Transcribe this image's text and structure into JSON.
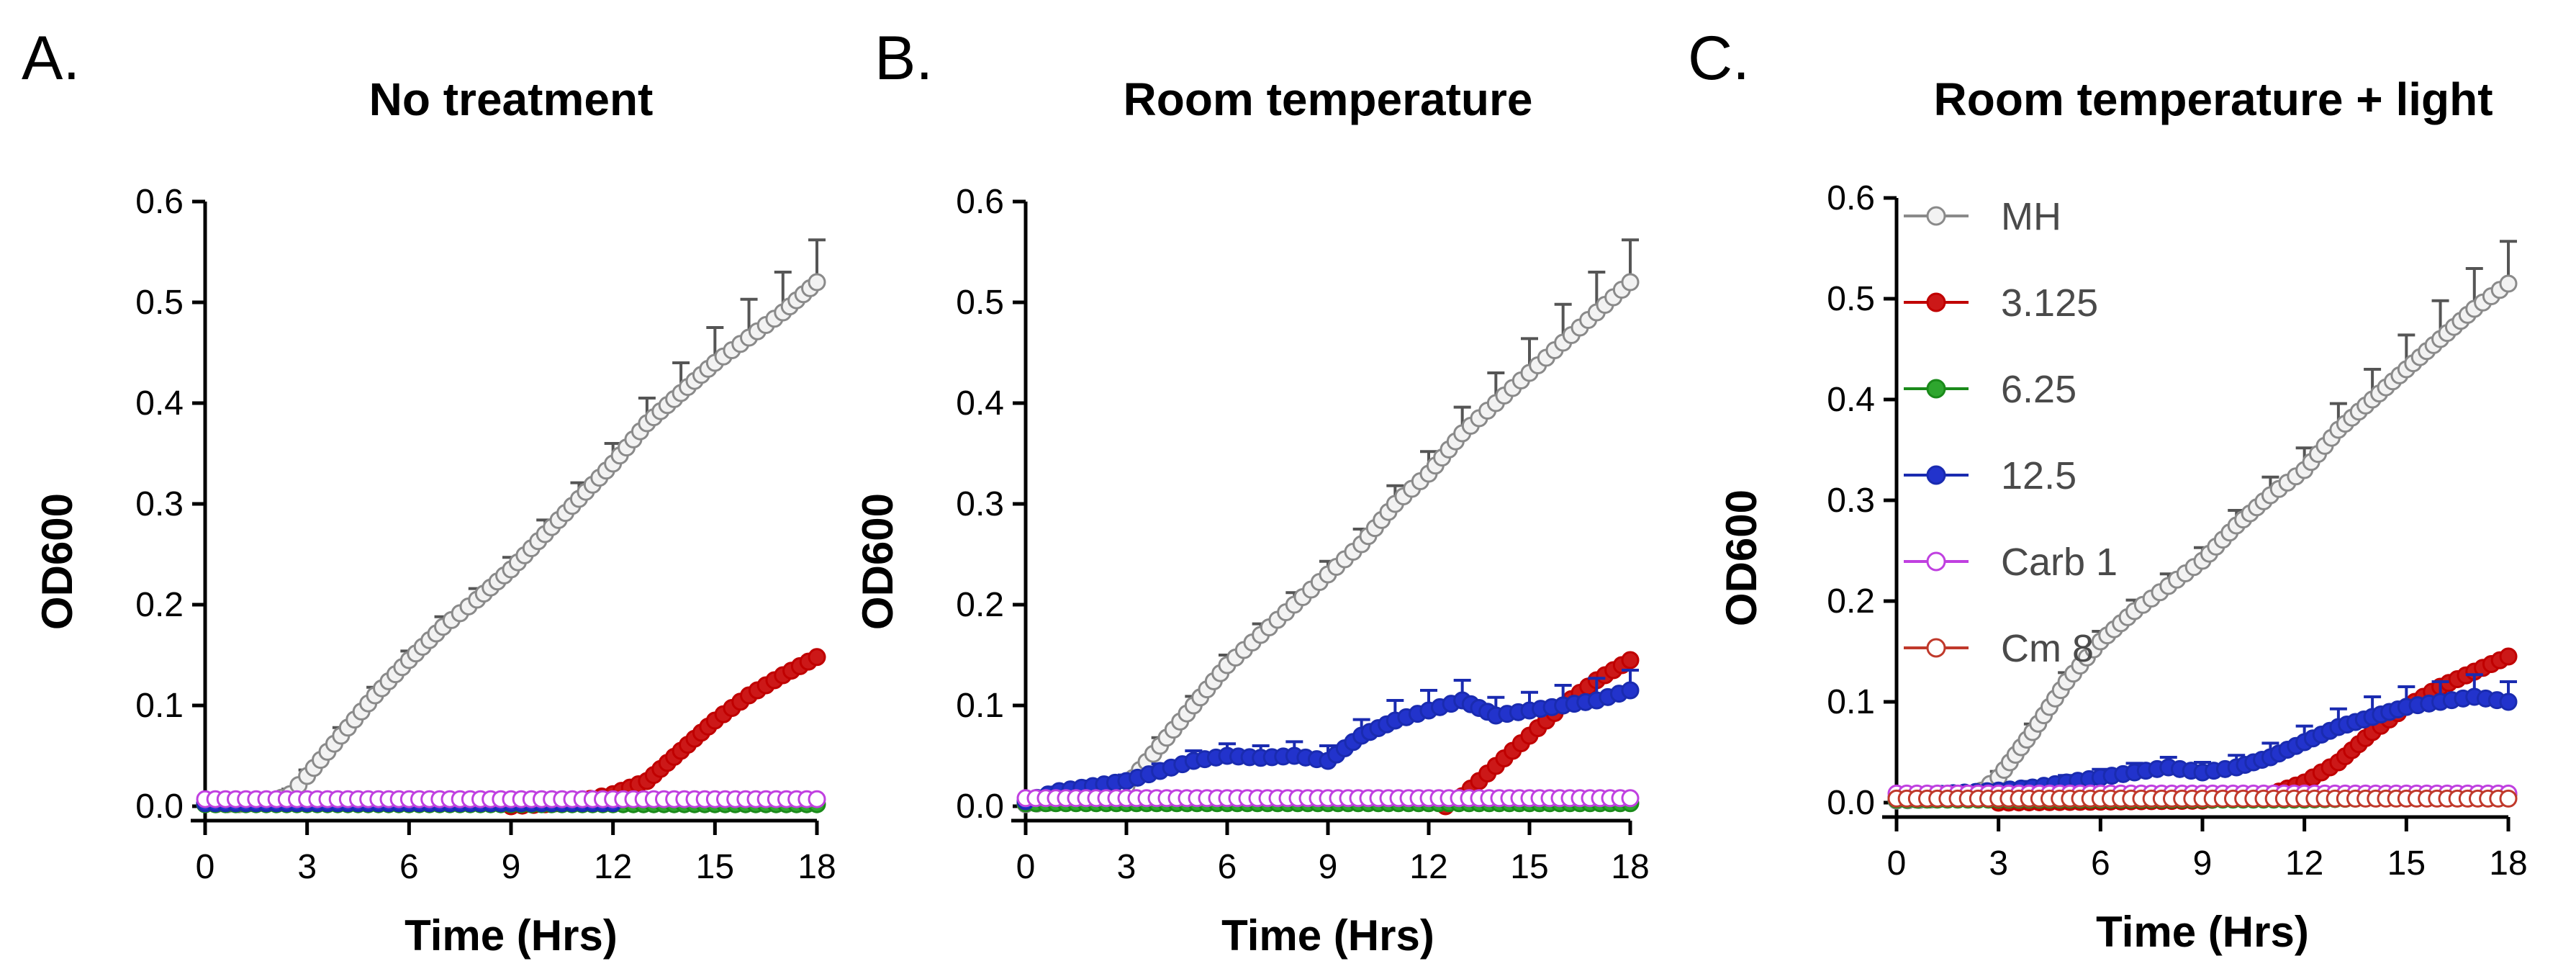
{
  "chart_data": [
    {
      "panel_letter": "A.",
      "type": "line",
      "title": "No treatment",
      "xlabel": "Time (Hrs)",
      "ylabel": "OD600",
      "xlim": [
        0,
        18
      ],
      "ylim": [
        0,
        0.6
      ],
      "xticks": [
        "0",
        "3",
        "6",
        "9",
        "12",
        "15",
        "18"
      ],
      "yticks": [
        "0.0",
        "0.1",
        "0.2",
        "0.3",
        "0.4",
        "0.5",
        "0.6"
      ],
      "legend": false,
      "series": [
        {
          "name": "MH",
          "color": "#8a8a8a",
          "fill": "#f2f2f2",
          "error": true,
          "x": [
            0,
            1,
            2,
            2.5,
            3,
            4,
            5,
            6,
            7,
            8,
            9,
            10,
            11,
            12,
            13,
            14,
            15,
            16,
            17,
            18
          ],
          "y": [
            0.002,
            0.002,
            0.005,
            0.012,
            0.03,
            0.07,
            0.11,
            0.145,
            0.178,
            0.205,
            0.235,
            0.27,
            0.305,
            0.34,
            0.38,
            0.41,
            0.44,
            0.465,
            0.49,
            0.52
          ],
          "err": [
            0.003,
            0.003,
            0.004,
            0.005,
            0.006,
            0.008,
            0.008,
            0.009,
            0.01,
            0.011,
            0.012,
            0.014,
            0.016,
            0.02,
            0.025,
            0.03,
            0.035,
            0.038,
            0.04,
            0.042
          ]
        },
        {
          "name": "3.125",
          "color": "#c00000",
          "fill": "#cc1818",
          "error": false,
          "x": [
            9,
            10,
            11,
            12,
            13,
            14,
            15,
            16,
            17,
            18
          ],
          "y": [
            0.0,
            0.002,
            0.005,
            0.012,
            0.025,
            0.055,
            0.085,
            0.11,
            0.13,
            0.148
          ]
        },
        {
          "name": "6.25",
          "color": "#1a8a1a",
          "fill": "#2ea62e",
          "error": false,
          "x": [
            0,
            3,
            6,
            9,
            12,
            15,
            18
          ],
          "y": [
            0.002,
            0.002,
            0.002,
            0.002,
            0.002,
            0.002,
            0.002
          ]
        },
        {
          "name": "12.5",
          "color": "#1a2bb0",
          "fill": "#2233cc",
          "error": false,
          "x": [
            0,
            3,
            6,
            9,
            12
          ],
          "y": [
            0.003,
            0.003,
            0.003,
            0.003,
            0.003
          ]
        },
        {
          "name": "Carb 1",
          "color": "#c040e0",
          "fill": "#ffffff",
          "error": false,
          "x": [
            0,
            3,
            6,
            9,
            12,
            15,
            18
          ],
          "y": [
            0.007,
            0.007,
            0.007,
            0.007,
            0.007,
            0.007,
            0.007
          ]
        }
      ]
    },
    {
      "panel_letter": "B.",
      "type": "line",
      "title": "Room temperature",
      "xlabel": "Time (Hrs)",
      "ylabel": "OD600",
      "xlim": [
        0,
        18
      ],
      "ylim": [
        0,
        0.6
      ],
      "xticks": [
        "0",
        "3",
        "6",
        "9",
        "12",
        "15",
        "18"
      ],
      "yticks": [
        "0.0",
        "0.1",
        "0.2",
        "0.3",
        "0.4",
        "0.5",
        "0.6"
      ],
      "legend": false,
      "series": [
        {
          "name": "MH",
          "color": "#8a8a8a",
          "fill": "#f2f2f2",
          "error": true,
          "x": [
            0,
            1,
            2,
            3,
            4,
            5,
            6,
            7,
            8,
            9,
            10,
            11,
            12,
            13,
            14,
            15,
            16,
            17,
            18
          ],
          "y": [
            0.002,
            0.004,
            0.008,
            0.02,
            0.06,
            0.1,
            0.14,
            0.17,
            0.2,
            0.23,
            0.26,
            0.3,
            0.33,
            0.37,
            0.4,
            0.43,
            0.46,
            0.49,
            0.52
          ],
          "err": [
            0.003,
            0.003,
            0.004,
            0.006,
            0.008,
            0.009,
            0.01,
            0.011,
            0.012,
            0.013,
            0.015,
            0.018,
            0.022,
            0.026,
            0.03,
            0.034,
            0.038,
            0.04,
            0.042
          ]
        },
        {
          "name": "3.125",
          "color": "#c00000",
          "fill": "#cc1818",
          "error": false,
          "x": [
            12.5,
            13,
            14,
            15,
            16,
            17,
            18
          ],
          "y": [
            0.0,
            0.01,
            0.04,
            0.07,
            0.1,
            0.125,
            0.145
          ]
        },
        {
          "name": "6.25",
          "color": "#1a8a1a",
          "fill": "#2ea62e",
          "error": false,
          "x": [
            0,
            3,
            6,
            9,
            12,
            15,
            18
          ],
          "y": [
            0.003,
            0.003,
            0.003,
            0.003,
            0.003,
            0.003,
            0.003
          ]
        },
        {
          "name": "12.5",
          "color": "#1a2bb0",
          "fill": "#2233cc",
          "error": true,
          "x": [
            0,
            1,
            2,
            3,
            4,
            5,
            6,
            7,
            8,
            9,
            10,
            11,
            12,
            13,
            14,
            15,
            16,
            17,
            18
          ],
          "y": [
            0.005,
            0.015,
            0.02,
            0.025,
            0.035,
            0.045,
            0.05,
            0.048,
            0.05,
            0.045,
            0.07,
            0.085,
            0.095,
            0.105,
            0.09,
            0.095,
            0.1,
            0.105,
            0.115
          ],
          "err": [
            0.003,
            0.004,
            0.005,
            0.006,
            0.007,
            0.01,
            0.012,
            0.012,
            0.014,
            0.015,
            0.016,
            0.02,
            0.02,
            0.02,
            0.018,
            0.018,
            0.02,
            0.022,
            0.02
          ]
        },
        {
          "name": "Carb 1",
          "color": "#c040e0",
          "fill": "#ffffff",
          "error": false,
          "x": [
            0,
            3,
            6,
            9,
            12,
            15,
            18
          ],
          "y": [
            0.008,
            0.008,
            0.008,
            0.008,
            0.008,
            0.008,
            0.008
          ]
        }
      ]
    },
    {
      "panel_letter": "C.",
      "type": "line",
      "title": "Room temperature + light",
      "xlabel": "Time (Hrs)",
      "ylabel": "OD600",
      "xlim": [
        0,
        18
      ],
      "ylim": [
        0,
        0.6
      ],
      "xticks": [
        "0",
        "3",
        "6",
        "9",
        "12",
        "15",
        "18"
      ],
      "yticks": [
        "0.0",
        "0.1",
        "0.2",
        "0.3",
        "0.4",
        "0.5",
        "0.6"
      ],
      "legend": true,
      "legend_position": "top-left",
      "series": [
        {
          "name": "MH",
          "color": "#8a8a8a",
          "fill": "#f2f2f2",
          "error": true,
          "x": [
            0,
            1,
            2,
            2.5,
            3,
            4,
            5,
            6,
            7,
            8,
            9,
            10,
            11,
            12,
            13,
            14,
            15,
            16,
            17,
            18
          ],
          "y": [
            0.002,
            0.003,
            0.006,
            0.012,
            0.025,
            0.07,
            0.12,
            0.16,
            0.19,
            0.215,
            0.24,
            0.275,
            0.305,
            0.33,
            0.37,
            0.4,
            0.43,
            0.46,
            0.49,
            0.515
          ],
          "err": [
            0.003,
            0.003,
            0.004,
            0.005,
            0.006,
            0.008,
            0.009,
            0.01,
            0.011,
            0.012,
            0.013,
            0.015,
            0.018,
            0.022,
            0.026,
            0.03,
            0.034,
            0.038,
            0.04,
            0.042
          ]
        },
        {
          "name": "3.125",
          "color": "#c00000",
          "fill": "#cc1818",
          "error": false,
          "x": [
            3,
            6,
            9,
            11,
            12,
            13,
            14,
            15,
            16,
            17,
            18
          ],
          "y": [
            0.0,
            0.001,
            0.002,
            0.008,
            0.02,
            0.04,
            0.07,
            0.095,
            0.115,
            0.13,
            0.145
          ]
        },
        {
          "name": "6.25",
          "color": "#1a8a1a",
          "fill": "#2ea62e",
          "error": false,
          "x": [
            0,
            3,
            6,
            9,
            12,
            15,
            18
          ],
          "y": [
            0.003,
            0.003,
            0.003,
            0.003,
            0.003,
            0.005,
            0.008
          ]
        },
        {
          "name": "12.5",
          "color": "#1a2bb0",
          "fill": "#2233cc",
          "error": true,
          "x": [
            0,
            1,
            2,
            3,
            4,
            5,
            6,
            7,
            8,
            9,
            10,
            11,
            12,
            13,
            14,
            15,
            16,
            17,
            18
          ],
          "y": [
            0.005,
            0.008,
            0.01,
            0.012,
            0.015,
            0.02,
            0.025,
            0.03,
            0.035,
            0.03,
            0.035,
            0.045,
            0.06,
            0.075,
            0.085,
            0.095,
            0.1,
            0.105,
            0.1
          ],
          "err": [
            0.003,
            0.003,
            0.004,
            0.005,
            0.006,
            0.007,
            0.008,
            0.009,
            0.01,
            0.01,
            0.012,
            0.014,
            0.016,
            0.018,
            0.02,
            0.02,
            0.02,
            0.022,
            0.02
          ]
        },
        {
          "name": "Carb 1",
          "color": "#c040e0",
          "fill": "#ffffff",
          "error": false,
          "x": [
            0,
            3,
            6,
            9,
            12,
            15,
            18
          ],
          "y": [
            0.009,
            0.009,
            0.009,
            0.009,
            0.009,
            0.009,
            0.009
          ]
        },
        {
          "name": "Cm 8",
          "color": "#c0392b",
          "fill": "#ffffff",
          "error": false,
          "x": [
            0,
            3,
            6,
            9,
            12,
            15,
            18
          ],
          "y": [
            0.004,
            0.004,
            0.004,
            0.004,
            0.004,
            0.004,
            0.004
          ]
        }
      ]
    }
  ]
}
